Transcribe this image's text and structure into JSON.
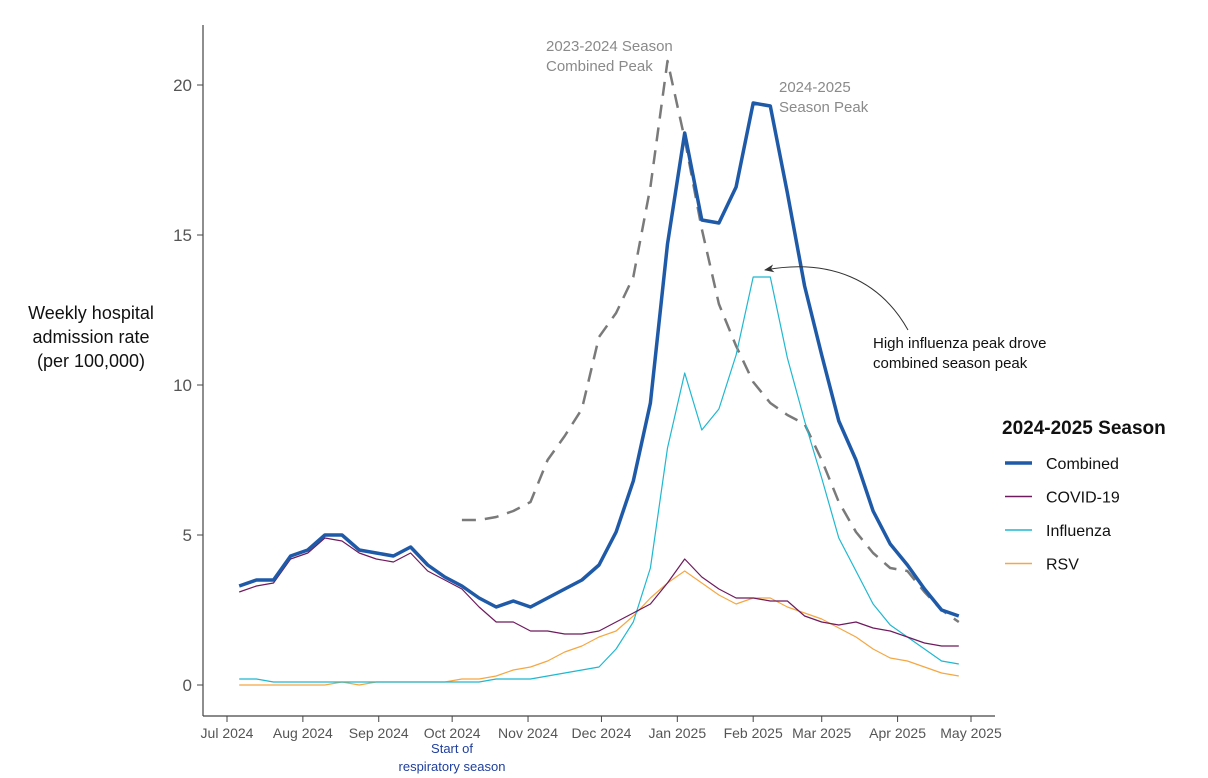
{
  "chart_data": {
    "type": "line",
    "title": "",
    "ylabel": [
      "Weekly hospital",
      "admission rate",
      "(per 100,000)"
    ],
    "xlabel": "",
    "ylim": [
      -1,
      22
    ],
    "xlim": [
      "2024-06-24",
      "2025-05-08"
    ],
    "grid": false,
    "yticks": [
      0,
      5,
      10,
      15,
      20
    ],
    "xticks": [
      {
        "date": "2024-07-01",
        "label": "Jul 2024"
      },
      {
        "date": "2024-08-01",
        "label": "Aug 2024"
      },
      {
        "date": "2024-09-01",
        "label": "Sep 2024"
      },
      {
        "date": "2024-10-01",
        "label": "Oct 2024"
      },
      {
        "date": "2024-11-01",
        "label": "Nov 2024"
      },
      {
        "date": "2024-12-01",
        "label": "Dec 2024"
      },
      {
        "date": "2025-01-01",
        "label": "Jan 2025"
      },
      {
        "date": "2025-02-01",
        "label": "Feb 2025"
      },
      {
        "date": "2025-03-01",
        "label": "Mar 2025"
      },
      {
        "date": "2025-04-01",
        "label": "Apr 2025"
      },
      {
        "date": "2025-05-01",
        "label": "May 2025"
      }
    ],
    "x": [
      "2024-07-06",
      "2024-07-13",
      "2024-07-20",
      "2024-07-27",
      "2024-08-03",
      "2024-08-10",
      "2024-08-17",
      "2024-08-24",
      "2024-08-31",
      "2024-09-07",
      "2024-09-14",
      "2024-09-21",
      "2024-09-28",
      "2024-10-05",
      "2024-10-12",
      "2024-10-19",
      "2024-10-26",
      "2024-11-02",
      "2024-11-09",
      "2024-11-16",
      "2024-11-23",
      "2024-11-30",
      "2024-12-07",
      "2024-12-14",
      "2024-12-21",
      "2024-12-28",
      "2025-01-04",
      "2025-01-11",
      "2025-01-18",
      "2025-01-25",
      "2025-02-01",
      "2025-02-08",
      "2025-02-15",
      "2025-02-22",
      "2025-03-01",
      "2025-03-08",
      "2025-03-15",
      "2025-03-22",
      "2025-03-29",
      "2025-04-05",
      "2025-04-12",
      "2025-04-19",
      "2025-04-26"
    ],
    "legend": {
      "title": "2024-2025 Season",
      "placement": "right"
    },
    "series": [
      {
        "name": "Combined",
        "color": "#1f5aa8",
        "style": "thick",
        "values": [
          3.3,
          3.5,
          3.5,
          4.3,
          4.5,
          5.0,
          5.0,
          4.5,
          4.4,
          4.3,
          4.6,
          4.0,
          3.6,
          3.3,
          2.9,
          2.6,
          2.8,
          2.6,
          2.9,
          3.2,
          3.5,
          4.0,
          5.1,
          6.8,
          9.4,
          14.7,
          18.4,
          15.5,
          15.4,
          16.6,
          19.4,
          19.3,
          16.4,
          13.3,
          11.0,
          8.8,
          7.5,
          5.8,
          4.7,
          4.0,
          3.2,
          2.5,
          2.3
        ]
      },
      {
        "name": "COVID-19",
        "color": "#6e1a5e",
        "style": "thin",
        "values": [
          3.1,
          3.3,
          3.4,
          4.2,
          4.4,
          4.9,
          4.8,
          4.4,
          4.2,
          4.1,
          4.4,
          3.8,
          3.5,
          3.2,
          2.6,
          2.1,
          2.1,
          1.8,
          1.8,
          1.7,
          1.7,
          1.8,
          2.1,
          2.4,
          2.7,
          3.4,
          4.2,
          3.6,
          3.2,
          2.9,
          2.9,
          2.8,
          2.8,
          2.3,
          2.1,
          2.0,
          2.1,
          1.9,
          1.8,
          1.6,
          1.4,
          1.3,
          1.3
        ]
      },
      {
        "name": "Influenza",
        "color": "#1fb8d0",
        "style": "thin",
        "values": [
          0.2,
          0.2,
          0.1,
          0.1,
          0.1,
          0.1,
          0.1,
          0.1,
          0.1,
          0.1,
          0.1,
          0.1,
          0.1,
          0.1,
          0.1,
          0.2,
          0.2,
          0.2,
          0.3,
          0.4,
          0.5,
          0.6,
          1.2,
          2.1,
          3.9,
          7.9,
          10.4,
          8.5,
          9.2,
          11.0,
          13.6,
          13.6,
          10.9,
          8.8,
          6.9,
          4.9,
          3.8,
          2.7,
          2.0,
          1.6,
          1.2,
          0.8,
          0.7
        ]
      },
      {
        "name": "RSV",
        "color": "#f5a742",
        "style": "thin",
        "values": [
          0,
          0,
          0,
          0,
          0,
          0,
          0.1,
          0,
          0.1,
          0.1,
          0.1,
          0.1,
          0.1,
          0.2,
          0.2,
          0.3,
          0.5,
          0.6,
          0.8,
          1.1,
          1.3,
          1.6,
          1.8,
          2.3,
          2.9,
          3.4,
          3.8,
          3.4,
          3.0,
          2.7,
          2.9,
          2.9,
          2.6,
          2.4,
          2.2,
          1.9,
          1.6,
          1.2,
          0.9,
          0.8,
          0.6,
          0.4,
          0.3
        ]
      },
      {
        "color": "#7a7a7a",
        "style": "dashed",
        "in_legend": false,
        "values": [
          null,
          null,
          null,
          null,
          null,
          null,
          null,
          null,
          null,
          null,
          null,
          null,
          null,
          5.5,
          5.5,
          5.6,
          5.8,
          6.1,
          7.5,
          8.3,
          9.2,
          11.6,
          12.4,
          13.6,
          16.6,
          20.8,
          18.2,
          15.2,
          12.7,
          11.3,
          10.1,
          9.4,
          9.0,
          8.7,
          7.5,
          6.1,
          5.1,
          4.4,
          3.9,
          3.8,
          3.1,
          2.5,
          2.1
        ]
      }
    ],
    "annotations": {
      "prior_peak": [
        "2023-2024 Season",
        "Combined Peak"
      ],
      "current_peak": [
        "2024-2025",
        "Season Peak"
      ],
      "influenza_note": [
        "High influenza peak drove",
        "combined season peak"
      ],
      "season_start": [
        "Start of",
        "respiratory season"
      ]
    },
    "annotation_colors": {
      "gray": "#8a8a8a",
      "season_start": "#1f3f9e"
    }
  }
}
